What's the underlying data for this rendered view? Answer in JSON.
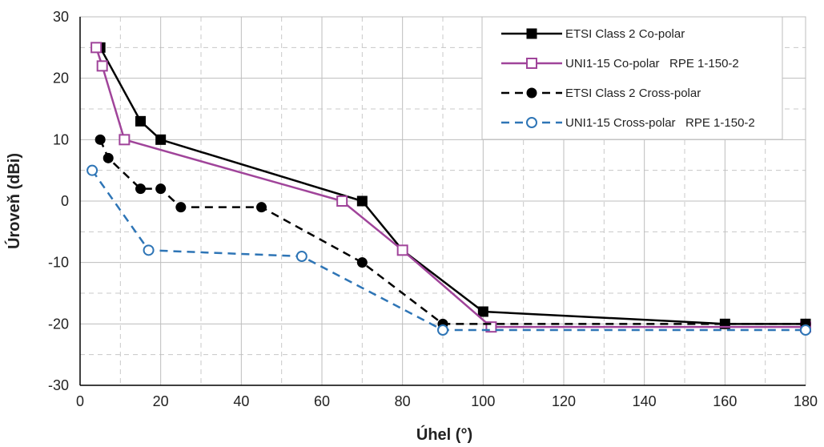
{
  "chart_data": {
    "type": "line",
    "xlabel": "Úhel (°)",
    "ylabel": "Úroveň (dBi)",
    "xlim": [
      0,
      180
    ],
    "ylim": [
      -30,
      30
    ],
    "x_ticks": [
      "0",
      "20",
      "40",
      "60",
      "80",
      "100",
      "120",
      "140",
      "160",
      "180"
    ],
    "y_ticks": [
      "30",
      "20",
      "10",
      "0",
      "-10",
      "-20",
      "-30"
    ],
    "grid": "major solid, minor dashed",
    "legend_position": "top-right",
    "series": [
      {
        "name": "ETSI Class 2 Co-polar",
        "color": "#000000",
        "line": "solid",
        "marker": "filled-square",
        "points": [
          [
            5,
            25
          ],
          [
            15,
            13
          ],
          [
            20,
            10
          ],
          [
            70,
            0
          ],
          [
            80,
            -8
          ],
          [
            100,
            -18
          ],
          [
            160,
            -20
          ],
          [
            180,
            -20
          ]
        ]
      },
      {
        "name": "UNI1-15 Co-polar   RPE 1-150-2",
        "color": "#a0449a",
        "line": "solid",
        "marker": "open-square",
        "points": [
          [
            4,
            25
          ],
          [
            5.5,
            22
          ],
          [
            11,
            10
          ],
          [
            65,
            0
          ],
          [
            80,
            -8
          ],
          [
            102,
            -20.5
          ],
          [
            180,
            -20.5
          ]
        ]
      },
      {
        "name": "ETSI Class 2 Cross-polar",
        "color": "#000000",
        "line": "dashed",
        "marker": "filled-circle",
        "points": [
          [
            5,
            10
          ],
          [
            7,
            7
          ],
          [
            15,
            2
          ],
          [
            20,
            2
          ],
          [
            25,
            -1
          ],
          [
            45,
            -1
          ],
          [
            70,
            -10
          ],
          [
            90,
            -20
          ],
          [
            180,
            -20
          ]
        ]
      },
      {
        "name": "UNI1-15 Cross-polar   RPE 1-150-2",
        "color": "#2e75b6",
        "line": "dashed",
        "marker": "open-circle",
        "points": [
          [
            3,
            5
          ],
          [
            17,
            -8
          ],
          [
            55,
            -9
          ],
          [
            90,
            -21
          ],
          [
            180,
            -21
          ]
        ]
      }
    ]
  }
}
